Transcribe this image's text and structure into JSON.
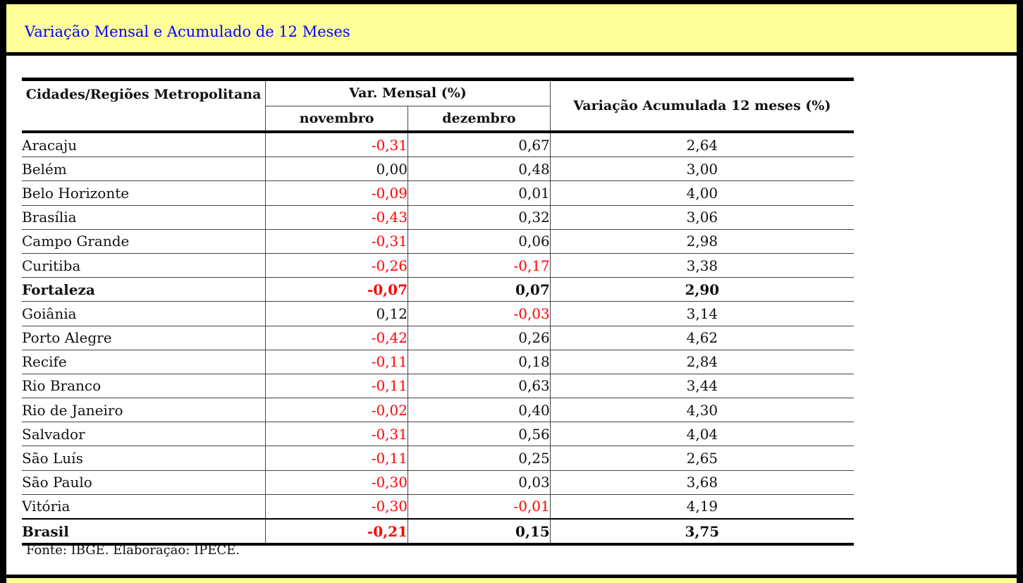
{
  "title": "Variação Mensal e Acumulado de 12 Meses",
  "table": {
    "headers": {
      "city": "Cidades/Regiões Metropolitana",
      "monthly": "Var. Mensal (%)",
      "november": "novembro",
      "december": "dezembro",
      "accumulated": "Variação Acumulada 12 meses (%)"
    },
    "rows": [
      {
        "city": "Aracaju",
        "nov": "-0,31",
        "dec": "0,67",
        "acc": "2,64"
      },
      {
        "city": "Belém",
        "nov": "0,00",
        "dec": "0,48",
        "acc": "3,00"
      },
      {
        "city": "Belo Horizonte",
        "nov": "-0,09",
        "dec": "0,01",
        "acc": "4,00"
      },
      {
        "city": "Brasília",
        "nov": "-0,43",
        "dec": "0,32",
        "acc": "3,06"
      },
      {
        "city": "Campo Grande",
        "nov": "-0,31",
        "dec": "0,06",
        "acc": "2,98"
      },
      {
        "city": "Curitiba",
        "nov": "-0,26",
        "dec": "-0,17",
        "acc": "3,38"
      },
      {
        "city": "Fortaleza",
        "nov": "-0,07",
        "dec": "0,07",
        "acc": "2,90"
      },
      {
        "city": "Goiânia",
        "nov": "0,12",
        "dec": "-0,03",
        "acc": "3,14"
      },
      {
        "city": "Porto Alegre",
        "nov": "-0,42",
        "dec": "0,26",
        "acc": "4,62"
      },
      {
        "city": "Recife",
        "nov": "-0,11",
        "dec": "0,18",
        "acc": "2,84"
      },
      {
        "city": "Rio Branco",
        "nov": "-0,11",
        "dec": "0,63",
        "acc": "3,44"
      },
      {
        "city": "Rio de Janeiro",
        "nov": "-0,02",
        "dec": "0,40",
        "acc": "4,30"
      },
      {
        "city": "Salvador",
        "nov": "-0,31",
        "dec": "0,56",
        "acc": "4,04"
      },
      {
        "city": "São Luís",
        "nov": "-0,11",
        "dec": "0,25",
        "acc": "2,65"
      },
      {
        "city": "São Paulo",
        "nov": "-0,30",
        "dec": "0,03",
        "acc": "3,68"
      },
      {
        "city": "Vitória",
        "nov": "-0,30",
        "dec": "-0,01",
        "acc": "4,19"
      },
      {
        "city": "Brasil",
        "nov": "-0,21",
        "dec": "0,15",
        "acc": "3,75"
      }
    ]
  },
  "source": "Fonte: IBGE. Elaboração: IPECE.",
  "colors": {
    "negative": "#ff0000",
    "title": "#0000ff",
    "bar": "#ffff99"
  }
}
